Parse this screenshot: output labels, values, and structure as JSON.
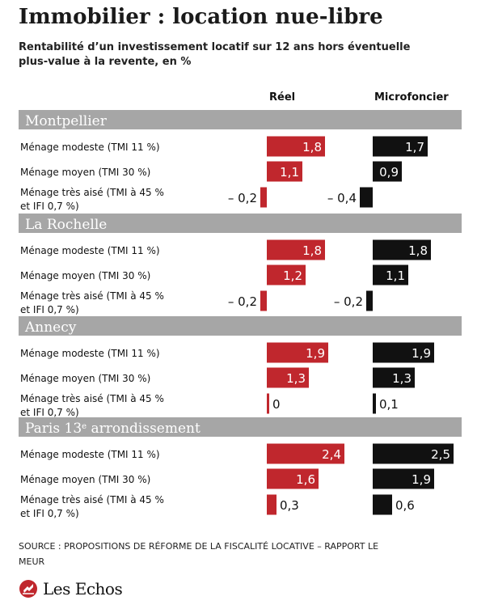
{
  "title": "Immobilier : location nue-libre",
  "subtitle": "Rentabilité d’un investissement locatif sur 12 ans hors éventuelle plus-value à la revente, en %",
  "source": "SOURCE : PROPOSITIONS DE RÉFORME DE LA FISCALITÉ LOCATIVE – RAPPORT LE MEUR",
  "brand": "Les Echos",
  "chart_data": {
    "type": "bar",
    "orientation": "horizontal",
    "series": [
      {
        "name": "Réel",
        "color": "#c0272d"
      },
      {
        "name": "Microfoncier",
        "color": "#111111"
      }
    ],
    "groups": [
      {
        "name": "Montpellier",
        "rows": [
          {
            "label": "Ménage modeste (TMI 11 %)",
            "values": [
              1.8,
              1.7
            ],
            "value_labels": [
              "1,8",
              "1,7"
            ]
          },
          {
            "label": "Ménage moyen (TMI 30 %)",
            "values": [
              1.1,
              0.9
            ],
            "value_labels": [
              "1,1",
              "0,9"
            ]
          },
          {
            "label": "Ménage très aisé (TMI à 45 % et IFI 0,7 %)",
            "values": [
              -0.2,
              -0.4
            ],
            "value_labels": [
              "– 0,2",
              "– 0,4"
            ]
          }
        ]
      },
      {
        "name": "La Rochelle",
        "rows": [
          {
            "label": "Ménage modeste (TMI 11 %)",
            "values": [
              1.8,
              1.8
            ],
            "value_labels": [
              "1,8",
              "1,8"
            ]
          },
          {
            "label": "Ménage moyen (TMI 30 %)",
            "values": [
              1.2,
              1.1
            ],
            "value_labels": [
              "1,2",
              "1,1"
            ]
          },
          {
            "label": "Ménage très aisé (TMI à 45 % et IFI 0,7 %)",
            "values": [
              -0.2,
              -0.2
            ],
            "value_labels": [
              "– 0,2",
              "– 0,2"
            ]
          }
        ]
      },
      {
        "name": "Annecy",
        "rows": [
          {
            "label": "Ménage modeste (TMI 11 %)",
            "values": [
              1.9,
              1.9
            ],
            "value_labels": [
              "1,9",
              "1,9"
            ]
          },
          {
            "label": "Ménage moyen (TMI 30 %)",
            "values": [
              1.3,
              1.3
            ],
            "value_labels": [
              "1,3",
              "1,3"
            ]
          },
          {
            "label": "Ménage très aisé (TMI à 45 % et IFI 0,7 %)",
            "values": [
              0,
              0.1
            ],
            "value_labels": [
              "0",
              "0,1"
            ]
          }
        ]
      },
      {
        "name": "Paris 13e arrondissement",
        "rows": [
          {
            "label": "Ménage modeste (TMI 11 %)",
            "values": [
              2.4,
              2.5
            ],
            "value_labels": [
              "2,4",
              "2,5"
            ]
          },
          {
            "label": "Ménage moyen (TMI 30 %)",
            "values": [
              1.6,
              1.9
            ],
            "value_labels": [
              "1,6",
              "1,9"
            ]
          },
          {
            "label": "Ménage très aisé (TMI à 45 % et IFI 0,7 %)",
            "values": [
              0.3,
              0.6
            ],
            "value_labels": [
              "0,3",
              "0,6"
            ]
          }
        ]
      }
    ]
  }
}
